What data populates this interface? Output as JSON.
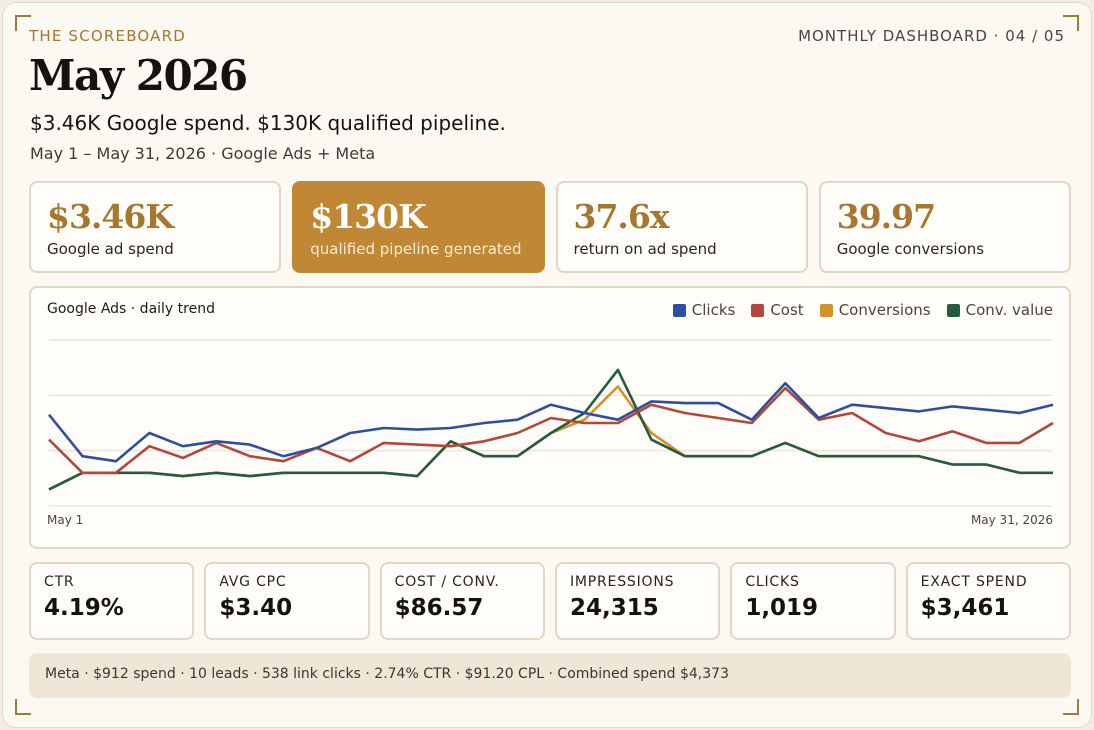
{
  "header": {
    "eyebrow": "THE SCOREBOARD",
    "meta": "MONTHLY DASHBOARD · 04 / 05",
    "title": "May 2026",
    "headline": "$3.46K Google spend. $130K qualified pipeline.",
    "subline": "May 1 – May 31, 2026 · Google Ads + Meta"
  },
  "kpis": [
    {
      "value": "$3.46K",
      "label": "Google ad spend"
    },
    {
      "value": "$130K",
      "label": "qualified pipeline generated"
    },
    {
      "value": "37.6x",
      "label": "return on ad spend"
    },
    {
      "value": "39.97",
      "label": "Google conversions"
    }
  ],
  "chart": {
    "title": "Google Ads · daily trend",
    "x_start": "May 1",
    "x_end": "May 31, 2026",
    "legend": [
      {
        "name": "Clicks",
        "color": "#2d4f9e"
      },
      {
        "name": "Cost",
        "color": "#b4463a"
      },
      {
        "name": "Conversions",
        "color": "#d3922b"
      },
      {
        "name": "Conv. value",
        "color": "#245c3e"
      }
    ]
  },
  "chart_data": {
    "type": "line",
    "title": "Google Ads · daily trend",
    "x": [
      1,
      2,
      3,
      4,
      5,
      6,
      7,
      8,
      9,
      10,
      11,
      12,
      13,
      14,
      15,
      16,
      17,
      18,
      19,
      20,
      21,
      22,
      23,
      24,
      25,
      26,
      27,
      28,
      29,
      30,
      31
    ],
    "x_tick_labels": [
      "May 1",
      "May 31, 2026"
    ],
    "ylim": [
      0,
      1
    ],
    "grid": true,
    "legend_position": "top-right",
    "series": [
      {
        "name": "Clicks",
        "color": "#2d4f9e",
        "values": [
          0.55,
          0.3,
          0.27,
          0.44,
          0.36,
          0.39,
          0.37,
          0.3,
          0.35,
          0.44,
          0.47,
          0.46,
          0.47,
          0.5,
          0.52,
          0.61,
          0.56,
          0.52,
          0.63,
          0.62,
          0.62,
          0.52,
          0.74,
          0.53,
          0.61,
          0.59,
          0.57,
          0.6,
          0.58,
          0.56,
          0.61
        ]
      },
      {
        "name": "Cost",
        "color": "#b4463a",
        "values": [
          0.4,
          0.2,
          0.2,
          0.36,
          0.29,
          0.38,
          0.3,
          0.27,
          0.35,
          0.27,
          0.38,
          0.37,
          0.36,
          0.39,
          0.44,
          0.53,
          0.5,
          0.5,
          0.61,
          0.56,
          0.53,
          0.5,
          0.71,
          0.52,
          0.56,
          0.44,
          0.39,
          0.45,
          0.38,
          0.38,
          0.5
        ]
      },
      {
        "name": "Conversions",
        "color": "#d3922b",
        "values": [
          0.1,
          0.2,
          0.2,
          0.2,
          0.18,
          0.2,
          0.18,
          0.2,
          0.2,
          0.2,
          0.2,
          0.18,
          0.39,
          0.3,
          0.3,
          0.44,
          0.52,
          0.72,
          0.44,
          0.3,
          0.3,
          0.3,
          0.38,
          0.3,
          0.3,
          0.3,
          0.3,
          0.25,
          0.25,
          0.2,
          0.2
        ]
      },
      {
        "name": "Conv. value",
        "color": "#245c3e",
        "values": [
          0.1,
          0.2,
          0.2,
          0.2,
          0.18,
          0.2,
          0.18,
          0.2,
          0.2,
          0.2,
          0.2,
          0.18,
          0.39,
          0.3,
          0.3,
          0.44,
          0.56,
          0.82,
          0.4,
          0.3,
          0.3,
          0.3,
          0.38,
          0.3,
          0.3,
          0.3,
          0.3,
          0.25,
          0.25,
          0.2,
          0.2
        ]
      }
    ]
  },
  "stats": [
    {
      "label": "CTR",
      "value": "4.19%"
    },
    {
      "label": "AVG CPC",
      "value": "$3.40"
    },
    {
      "label": "COST / CONV.",
      "value": "$86.57"
    },
    {
      "label": "IMPRESSIONS",
      "value": "24,315"
    },
    {
      "label": "CLICKS",
      "value": "1,019"
    },
    {
      "label": "EXACT SPEND",
      "value": "$3,461"
    }
  ],
  "footer": {
    "text": "Meta · $912 spend · 10 leads · 538 link clicks · 2.74% CTR · $91.20 CPL · Combined spend $4,373"
  }
}
